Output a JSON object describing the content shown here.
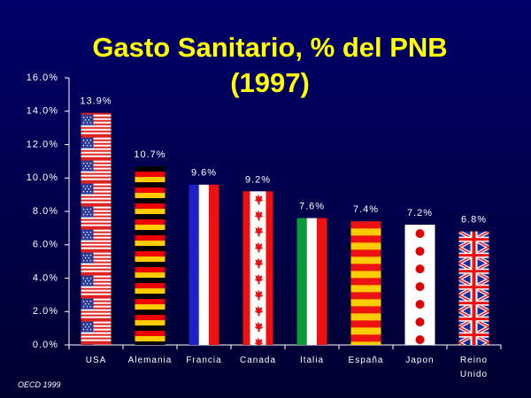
{
  "chart_data": {
    "type": "bar",
    "title": [
      "Gasto Sanitario, % del PNB",
      "(1997)"
    ],
    "categories": [
      "USA",
      "Alemania",
      "Francia",
      "Canada",
      "Italia",
      "España",
      "Japon",
      "Reino Unido"
    ],
    "values": [
      13.9,
      10.7,
      9.6,
      9.2,
      7.6,
      7.4,
      7.2,
      6.8
    ],
    "value_labels": [
      "13.9%",
      "10.7%",
      "9.6%",
      "9.2%",
      "7.6%",
      "7.4%",
      "7.2%",
      "6.8%"
    ],
    "ylim": [
      0,
      16
    ],
    "yticks": [
      {
        "value": 0,
        "label": "0.0%"
      },
      {
        "value": 2,
        "label": "2.0%"
      },
      {
        "value": 4,
        "label": "4.0%"
      },
      {
        "value": 6,
        "label": "6.0%"
      },
      {
        "value": 8,
        "label": "8.0%"
      },
      {
        "value": 10,
        "label": "10.0%"
      },
      {
        "value": 12,
        "label": "12.0%"
      },
      {
        "value": 14,
        "label": "14.0%"
      },
      {
        "value": 16,
        "label": "16.0%"
      }
    ],
    "source": "OECD 1999"
  }
}
